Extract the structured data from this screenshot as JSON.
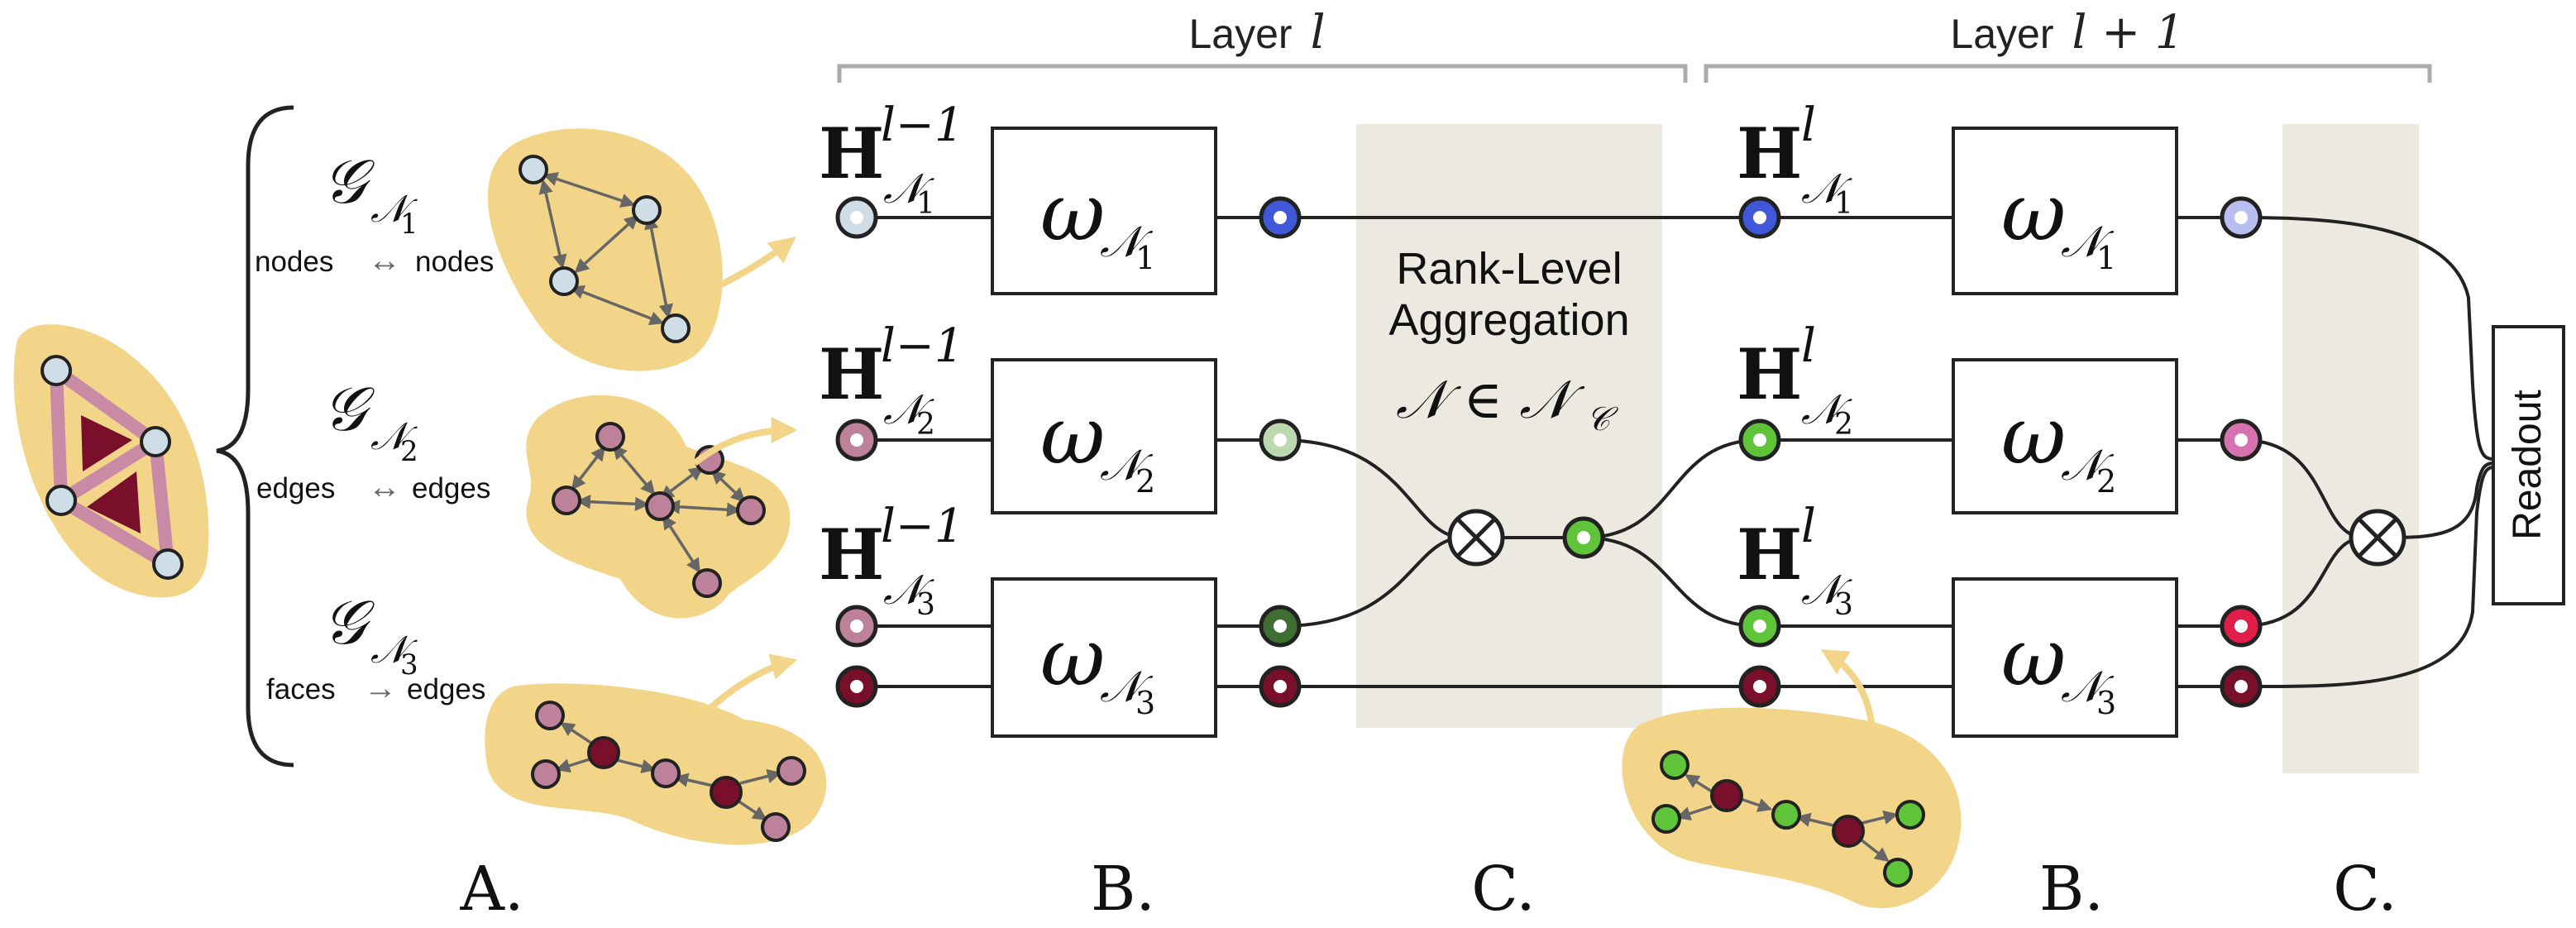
{
  "colors": {
    "blob": "#f2d589",
    "shade": "#ebe9e0",
    "wire": "#222222",
    "bracket": "#aaaaaa",
    "light_blue": "#cfdde6",
    "blue": "#3f57d8",
    "lavender": "#b8bff0",
    "mauve": "#bd829a",
    "maroon": "#7a0f2c",
    "light_green": "#bcd9b0",
    "green": "#5fc43a",
    "dark_green": "#3f6e33",
    "pink": "#d772b0",
    "red": "#e01e48",
    "arrow_grey": "#777777"
  },
  "headers": {
    "layer_l": "Layer",
    "layer_l_sym": "l",
    "layer_l1": "Layer",
    "layer_l1_sym": "l + 1"
  },
  "panel_a": {
    "rows": [
      {
        "g": "𝒢",
        "sub": "𝒩",
        "idx": "1",
        "from": "nodes",
        "arrow": "↔",
        "to": "nodes"
      },
      {
        "g": "𝒢",
        "sub": "𝒩",
        "idx": "2",
        "from": "edges",
        "arrow": "↔",
        "to": "edges"
      },
      {
        "g": "𝒢",
        "sub": "𝒩",
        "idx": "3",
        "from": "faces",
        "arrow": "→",
        "to": "edges"
      }
    ]
  },
  "layers": {
    "h_symbol": "H",
    "h_sub": "𝒩",
    "sup_prev": "l−1",
    "sup_curr": "l",
    "omega": "ω",
    "omega_sub": "𝒩",
    "idx": [
      "1",
      "2",
      "3"
    ]
  },
  "aggregation": {
    "line1": "Rank-Level",
    "line2": "Aggregation",
    "formula": "𝒩 ∈ 𝒩",
    "formula_sub": "𝒞",
    "otimes": "⊗"
  },
  "readout": {
    "label": "Readout"
  },
  "panel_labels": [
    "A.",
    "B.",
    "C.",
    "B.",
    "C."
  ]
}
